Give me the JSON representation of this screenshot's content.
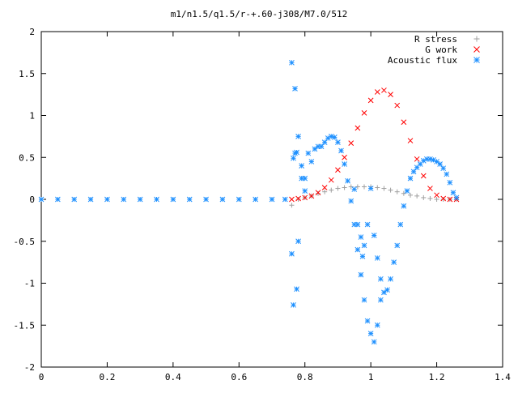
{
  "chart_data": {
    "type": "scatter",
    "title": "m1/n1.5/q1.5/r-+.60-j308/M7.0/512",
    "xlabel": "",
    "ylabel": "",
    "xlim": [
      0,
      1.4
    ],
    "ylim": [
      -2,
      2
    ],
    "x_ticks": [
      "0",
      "0.2",
      "0.4",
      "0.6",
      "0.8",
      "1",
      "1.2",
      "1.4"
    ],
    "y_ticks": [
      "2",
      "1.5",
      "1",
      "0.5",
      "0",
      "-0.5",
      "-1",
      "-1.5",
      "-2"
    ],
    "grid": false,
    "legend_position": "top-right",
    "series": [
      {
        "name": "R stress",
        "marker": "+",
        "color": "#a0a0a0",
        "points": [
          [
            0.76,
            -0.07
          ],
          [
            0.78,
            0.0
          ],
          [
            0.8,
            0.02
          ],
          [
            0.82,
            0.04
          ],
          [
            0.84,
            0.07
          ],
          [
            0.86,
            0.09
          ],
          [
            0.88,
            0.11
          ],
          [
            0.9,
            0.13
          ],
          [
            0.92,
            0.14
          ],
          [
            0.94,
            0.15
          ],
          [
            0.96,
            0.15
          ],
          [
            0.98,
            0.15
          ],
          [
            1.0,
            0.15
          ],
          [
            1.02,
            0.14
          ],
          [
            1.04,
            0.13
          ],
          [
            1.06,
            0.11
          ],
          [
            1.08,
            0.09
          ],
          [
            1.1,
            0.07
          ],
          [
            1.12,
            0.05
          ],
          [
            1.14,
            0.04
          ],
          [
            1.16,
            0.02
          ],
          [
            1.18,
            0.01
          ],
          [
            1.2,
            0.0
          ],
          [
            1.22,
            0.0
          ],
          [
            1.24,
            0.0
          ],
          [
            1.26,
            0.0
          ]
        ]
      },
      {
        "name": "G work",
        "marker": "x",
        "color": "#ff0000",
        "points": [
          [
            0.76,
            0.0
          ],
          [
            0.78,
            0.01
          ],
          [
            0.8,
            0.02
          ],
          [
            0.82,
            0.04
          ],
          [
            0.84,
            0.08
          ],
          [
            0.86,
            0.14
          ],
          [
            0.88,
            0.23
          ],
          [
            0.9,
            0.35
          ],
          [
            0.92,
            0.5
          ],
          [
            0.94,
            0.67
          ],
          [
            0.96,
            0.85
          ],
          [
            0.98,
            1.03
          ],
          [
            1.0,
            1.18
          ],
          [
            1.02,
            1.28
          ],
          [
            1.04,
            1.3
          ],
          [
            1.06,
            1.25
          ],
          [
            1.08,
            1.12
          ],
          [
            1.1,
            0.92
          ],
          [
            1.12,
            0.7
          ],
          [
            1.14,
            0.48
          ],
          [
            1.16,
            0.28
          ],
          [
            1.18,
            0.13
          ],
          [
            1.2,
            0.05
          ],
          [
            1.22,
            0.01
          ],
          [
            1.24,
            0.0
          ],
          [
            1.26,
            0.0
          ]
        ]
      },
      {
        "name": "Acoustic flux",
        "marker": "*",
        "color": "#1e90ff",
        "points": [
          [
            0.0,
            0.0
          ],
          [
            0.05,
            0.0
          ],
          [
            0.1,
            0.0
          ],
          [
            0.15,
            0.0
          ],
          [
            0.2,
            0.0
          ],
          [
            0.25,
            0.0
          ],
          [
            0.3,
            0.0
          ],
          [
            0.35,
            0.0
          ],
          [
            0.4,
            0.0
          ],
          [
            0.45,
            0.0
          ],
          [
            0.5,
            0.0
          ],
          [
            0.55,
            0.0
          ],
          [
            0.6,
            0.0
          ],
          [
            0.65,
            0.0
          ],
          [
            0.7,
            0.0
          ],
          [
            0.74,
            0.0
          ],
          [
            0.76,
            1.63
          ],
          [
            0.77,
            1.32
          ],
          [
            0.78,
            0.75
          ],
          [
            0.765,
            0.49
          ],
          [
            0.775,
            0.56
          ],
          [
            0.76,
            -0.65
          ],
          [
            0.775,
            -1.07
          ],
          [
            0.765,
            -1.26
          ],
          [
            0.78,
            -0.5
          ],
          [
            0.79,
            0.4
          ],
          [
            0.8,
            0.25
          ],
          [
            0.81,
            0.55
          ],
          [
            0.82,
            0.45
          ],
          [
            0.8,
            0.1
          ],
          [
            0.79,
            0.25
          ],
          [
            0.77,
            0.55
          ],
          [
            0.83,
            0.6
          ],
          [
            0.84,
            0.63
          ],
          [
            0.85,
            0.63
          ],
          [
            0.86,
            0.68
          ],
          [
            0.87,
            0.73
          ],
          [
            0.88,
            0.75
          ],
          [
            0.89,
            0.74
          ],
          [
            0.9,
            0.68
          ],
          [
            0.91,
            0.58
          ],
          [
            0.92,
            0.42
          ],
          [
            0.93,
            0.22
          ],
          [
            0.94,
            -0.02
          ],
          [
            0.95,
            -0.3
          ],
          [
            0.96,
            -0.6
          ],
          [
            0.97,
            -0.9
          ],
          [
            0.98,
            -1.2
          ],
          [
            0.99,
            -1.45
          ],
          [
            1.0,
            -1.6
          ],
          [
            1.01,
            -1.7
          ],
          [
            1.02,
            -1.5
          ],
          [
            1.03,
            -1.2
          ],
          [
            1.04,
            -1.11
          ],
          [
            1.05,
            -1.08
          ],
          [
            1.06,
            -0.95
          ],
          [
            1.07,
            -0.75
          ],
          [
            1.08,
            -0.55
          ],
          [
            1.09,
            -0.3
          ],
          [
            1.1,
            -0.08
          ],
          [
            1.11,
            0.1
          ],
          [
            1.12,
            0.25
          ],
          [
            1.13,
            0.33
          ],
          [
            1.14,
            0.38
          ],
          [
            1.15,
            0.42
          ],
          [
            1.16,
            0.46
          ],
          [
            1.17,
            0.48
          ],
          [
            1.18,
            0.48
          ],
          [
            1.19,
            0.47
          ],
          [
            1.2,
            0.45
          ],
          [
            1.21,
            0.42
          ],
          [
            1.22,
            0.37
          ],
          [
            1.23,
            0.3
          ],
          [
            1.24,
            0.2
          ],
          [
            1.25,
            0.08
          ],
          [
            1.26,
            0.02
          ],
          [
            0.95,
            0.12
          ],
          [
            0.96,
            -0.3
          ],
          [
            0.97,
            -0.45
          ],
          [
            0.98,
            -0.55
          ],
          [
            0.975,
            -0.68
          ],
          [
            0.99,
            -0.3
          ],
          [
            1.0,
            0.13
          ],
          [
            1.01,
            -0.43
          ],
          [
            1.02,
            -0.7
          ],
          [
            1.03,
            -0.95
          ]
        ]
      }
    ]
  }
}
